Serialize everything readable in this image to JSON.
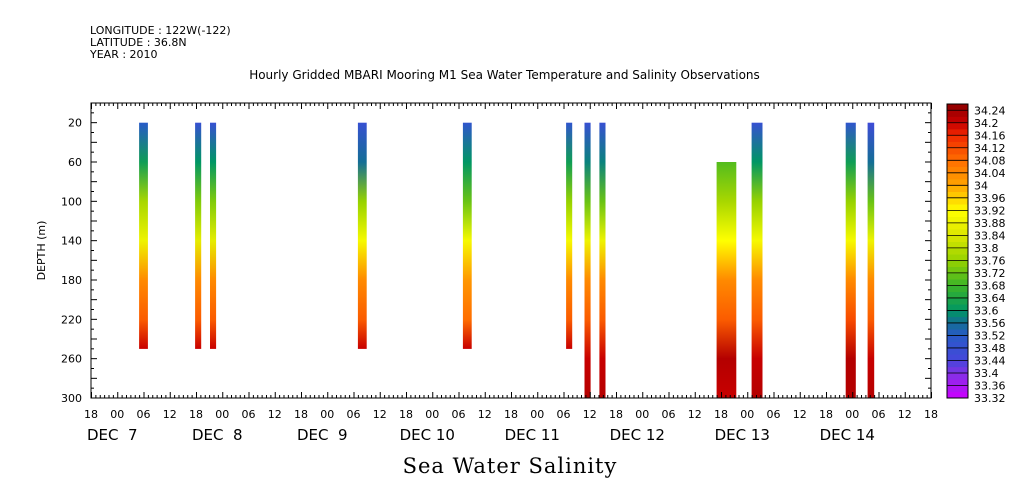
{
  "header": {
    "longitude": "LONGITUDE : 122W(-122)",
    "latitude": "LATITUDE : 36.8N",
    "year": "YEAR : 2010"
  },
  "chart_data": {
    "type": "heatmap",
    "title": "Hourly Gridded MBARI Mooring M1 Sea Water Temperature and Salinity Observations",
    "xlabel": "Sea Water Salinity",
    "ylabel": "DEPTH (m)",
    "x_range_hours": [
      -6,
      186
    ],
    "x_origin": "DEC 7 00",
    "ylim": [
      300,
      0
    ],
    "yticks": [
      20,
      60,
      100,
      140,
      180,
      220,
      260,
      300
    ],
    "x_hour_tick_labels": [
      "18",
      "00",
      "06",
      "12",
      "18",
      "00",
      "06",
      "12",
      "18",
      "00",
      "06",
      "12",
      "18",
      "00",
      "06",
      "12",
      "18",
      "00",
      "06",
      "12",
      "18",
      "00",
      "06",
      "12",
      "18",
      "00",
      "06",
      "12",
      "18",
      "00",
      "06",
      "12",
      "18"
    ],
    "x_day_labels": [
      {
        "label": "DEC  7",
        "hour": 0
      },
      {
        "label": "DEC  8",
        "hour": 24
      },
      {
        "label": "DEC  9",
        "hour": 48
      },
      {
        "label": "DEC 10",
        "hour": 72
      },
      {
        "label": "DEC 11",
        "hour": 96
      },
      {
        "label": "DEC 12",
        "hour": 120
      },
      {
        "label": "DEC 13",
        "hour": 144
      },
      {
        "label": "DEC 14",
        "hour": 168
      }
    ],
    "colorbar": {
      "min": 33.32,
      "max": 34.26,
      "labels": [
        "34.24",
        "34.2",
        "34.16",
        "34.12",
        "34.08",
        "34.04",
        "34",
        "33.96",
        "33.92",
        "33.88",
        "33.84",
        "33.8",
        "33.76",
        "33.72",
        "33.68",
        "33.64",
        "33.6",
        "33.56",
        "33.52",
        "33.48",
        "33.44",
        "33.4",
        "33.36",
        "33.32"
      ]
    },
    "columns": [
      {
        "start_hour": 5,
        "end_hour": 7,
        "depth_top": 20,
        "depth_bottom": 250,
        "profile": [
          [
            20,
            33.52
          ],
          [
            60,
            33.62
          ],
          [
            100,
            33.78
          ],
          [
            140,
            33.88
          ],
          [
            180,
            34.04
          ],
          [
            220,
            34.1
          ],
          [
            250,
            34.2
          ]
        ]
      },
      {
        "start_hour": 17.8,
        "end_hour": 19.2,
        "depth_top": 20,
        "depth_bottom": 250,
        "profile": [
          [
            20,
            33.48
          ],
          [
            60,
            33.6
          ],
          [
            100,
            33.74
          ],
          [
            140,
            33.86
          ],
          [
            180,
            34.04
          ],
          [
            220,
            34.1
          ],
          [
            250,
            34.2
          ]
        ]
      },
      {
        "start_hour": 21.2,
        "end_hour": 22.6,
        "depth_top": 20,
        "depth_bottom": 250,
        "profile": [
          [
            20,
            33.48
          ],
          [
            60,
            33.6
          ],
          [
            100,
            33.74
          ],
          [
            140,
            33.86
          ],
          [
            180,
            34.04
          ],
          [
            220,
            34.1
          ],
          [
            250,
            34.2
          ]
        ]
      },
      {
        "start_hour": 55,
        "end_hour": 57,
        "depth_top": 20,
        "depth_bottom": 250,
        "profile": [
          [
            20,
            33.48
          ],
          [
            60,
            33.56
          ],
          [
            100,
            33.76
          ],
          [
            140,
            33.9
          ],
          [
            180,
            34.04
          ],
          [
            220,
            34.1
          ],
          [
            250,
            34.2
          ]
        ]
      },
      {
        "start_hour": 79,
        "end_hour": 81,
        "depth_top": 20,
        "depth_bottom": 250,
        "profile": [
          [
            20,
            33.5
          ],
          [
            60,
            33.6
          ],
          [
            100,
            33.72
          ],
          [
            140,
            33.9
          ],
          [
            180,
            34.02
          ],
          [
            220,
            34.08
          ],
          [
            250,
            34.2
          ]
        ]
      },
      {
        "start_hour": 102.6,
        "end_hour": 104,
        "depth_top": 20,
        "depth_bottom": 250,
        "profile": [
          [
            20,
            33.5
          ],
          [
            60,
            33.62
          ],
          [
            100,
            33.76
          ],
          [
            140,
            33.9
          ],
          [
            180,
            34.04
          ],
          [
            220,
            34.1
          ],
          [
            250,
            34.2
          ]
        ]
      },
      {
        "start_hour": 106.8,
        "end_hour": 108.2,
        "depth_top": 20,
        "depth_bottom": 300,
        "profile": [
          [
            20,
            33.48
          ],
          [
            60,
            33.58
          ],
          [
            100,
            33.72
          ],
          [
            140,
            33.88
          ],
          [
            180,
            34.04
          ],
          [
            220,
            34.1
          ],
          [
            260,
            34.2
          ],
          [
            300,
            34.22
          ]
        ]
      },
      {
        "start_hour": 110.2,
        "end_hour": 111.6,
        "depth_top": 20,
        "depth_bottom": 300,
        "profile": [
          [
            20,
            33.48
          ],
          [
            60,
            33.58
          ],
          [
            100,
            33.72
          ],
          [
            140,
            33.88
          ],
          [
            180,
            34.04
          ],
          [
            220,
            34.1
          ],
          [
            260,
            34.2
          ],
          [
            300,
            34.22
          ]
        ]
      },
      {
        "start_hour": 137,
        "end_hour": 141.5,
        "depth_top": 60,
        "depth_bottom": 300,
        "profile": [
          [
            60,
            33.7
          ],
          [
            100,
            33.78
          ],
          [
            140,
            33.92
          ],
          [
            180,
            34.04
          ],
          [
            220,
            34.1
          ],
          [
            260,
            34.22
          ],
          [
            300,
            34.2
          ]
        ]
      },
      {
        "start_hour": 145,
        "end_hour": 147.5,
        "depth_top": 20,
        "depth_bottom": 300,
        "profile": [
          [
            20,
            33.48
          ],
          [
            60,
            33.6
          ],
          [
            100,
            33.76
          ],
          [
            140,
            33.9
          ],
          [
            180,
            34.04
          ],
          [
            220,
            34.1
          ],
          [
            260,
            34.2
          ],
          [
            300,
            34.22
          ]
        ]
      },
      {
        "start_hour": 166.5,
        "end_hour": 168.8,
        "depth_top": 20,
        "depth_bottom": 300,
        "profile": [
          [
            20,
            33.5
          ],
          [
            60,
            33.62
          ],
          [
            100,
            33.76
          ],
          [
            140,
            33.9
          ],
          [
            180,
            34.04
          ],
          [
            220,
            34.12
          ],
          [
            260,
            34.22
          ],
          [
            300,
            34.22
          ]
        ]
      },
      {
        "start_hour": 171.5,
        "end_hour": 173,
        "depth_top": 20,
        "depth_bottom": 300,
        "profile": [
          [
            20,
            33.46
          ],
          [
            60,
            33.56
          ],
          [
            100,
            33.72
          ],
          [
            140,
            33.88
          ],
          [
            180,
            34.04
          ],
          [
            220,
            34.1
          ],
          [
            260,
            34.2
          ],
          [
            300,
            34.22
          ]
        ]
      }
    ]
  }
}
